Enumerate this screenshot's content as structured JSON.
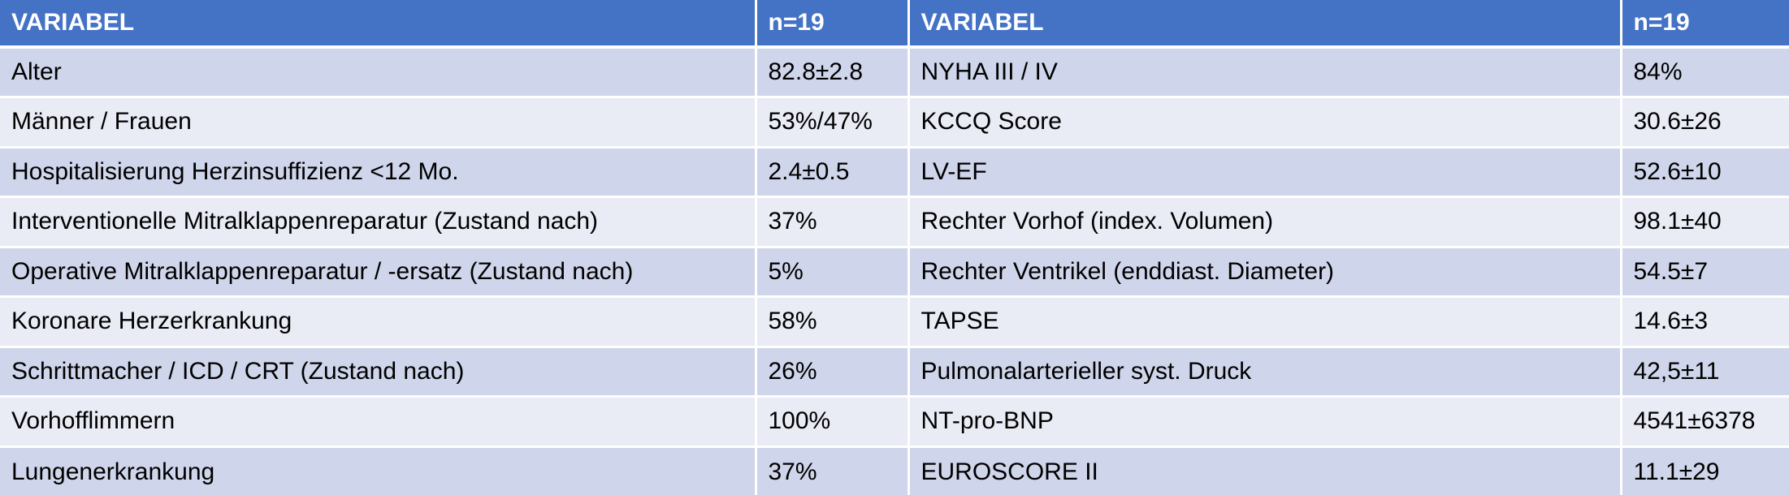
{
  "table": {
    "headers": [
      "VARIABEL",
      "n=19",
      "VARIABEL",
      "n=19"
    ],
    "rows": [
      [
        "Alter",
        "82.8±2.8",
        "NYHA III / IV",
        "84%"
      ],
      [
        "Männer / Frauen",
        "53%/47%",
        "KCCQ Score",
        "30.6±26"
      ],
      [
        "Hospitalisierung Herzinsuffizienz <12 Mo.",
        "2.4±0.5",
        "LV-EF",
        "52.6±10"
      ],
      [
        "Interventionelle Mitralklappenreparatur (Zustand nach)",
        "37%",
        "Rechter Vorhof (index. Volumen)",
        "98.1±40"
      ],
      [
        "Operative Mitralklappenreparatur / -ersatz (Zustand nach)",
        "5%",
        "Rechter Ventrikel (enddiast. Diameter)",
        "54.5±7"
      ],
      [
        "Koronare Herzerkrankung",
        "58%",
        "TAPSE",
        "14.6±3"
      ],
      [
        "Schrittmacher / ICD / CRT (Zustand nach)",
        "26%",
        "Pulmonalarterieller syst. Druck",
        "42,5±11"
      ],
      [
        "Vorhofflimmern",
        "100%",
        "NT-pro-BNP",
        "4541±6378"
      ],
      [
        "Lungenerkrankung",
        "37%",
        "EUROSCORE II",
        "11.1±29"
      ]
    ]
  },
  "colors": {
    "header_bg": "#4472c4",
    "row_odd_bg": "#cfd5ea",
    "row_even_bg": "#e9ebf5"
  }
}
